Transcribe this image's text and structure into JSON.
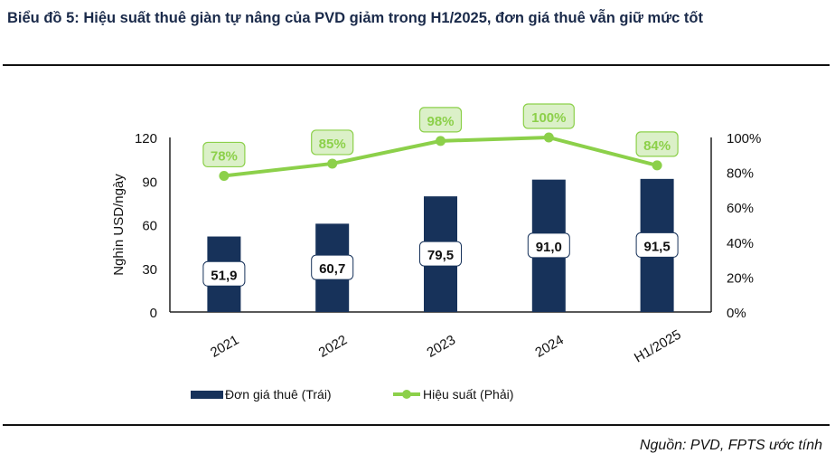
{
  "title": "Biểu đồ 5: Hiệu suất thuê giàn tự nâng của PVD giảm trong H1/2025, đơn giá thuê vẫn giữ mức tốt",
  "source": "Nguồn: PVD, FPTS ước tính",
  "chart_data": {
    "type": "bar+line",
    "categories": [
      "2021",
      "2022",
      "2023",
      "2024",
      "H1/2025"
    ],
    "ylabel": "Nghìn USD/ngày",
    "ylim": [
      0,
      120
    ],
    "yticks": [
      "0",
      "30",
      "60",
      "90",
      "120"
    ],
    "y2lim": [
      0,
      100
    ],
    "y2ticks": [
      "0%",
      "20%",
      "40%",
      "60%",
      "80%",
      "100%"
    ],
    "grid": false,
    "legend": "bottom",
    "series": [
      {
        "name": "Đơn giá thuê (Trái)",
        "type": "bar",
        "axis": "left",
        "color": "#17325a",
        "values": [
          51.9,
          60.7,
          79.5,
          91.0,
          91.5
        ],
        "labels": [
          "51,9",
          "60,7",
          "79,5",
          "91,0",
          "91,5"
        ]
      },
      {
        "name": "Hiệu suất (Phải)",
        "type": "line",
        "axis": "right",
        "color": "#8cd04a",
        "values": [
          78,
          85,
          98,
          100,
          84
        ],
        "labels": [
          "78%",
          "85%",
          "98%",
          "100%",
          "84%"
        ]
      }
    ]
  }
}
